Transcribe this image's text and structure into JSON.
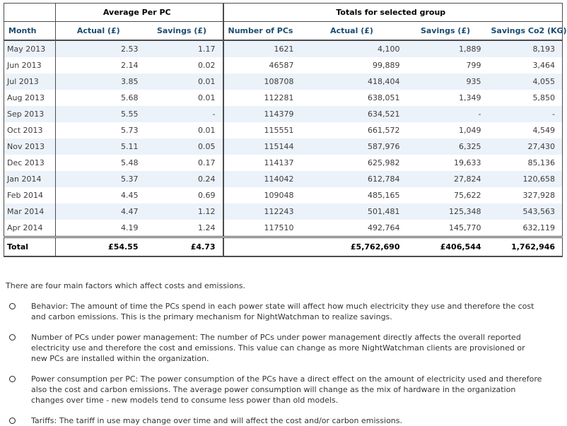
{
  "table": {
    "group_headers": {
      "average_per_pc": "Average Per PC",
      "totals": "Totals for selected group"
    },
    "columns": {
      "month": "Month",
      "avg_actual": "Actual (£)",
      "avg_savings": "Savings (£)",
      "num_pcs": "Number of PCs",
      "tot_actual": "Actual (£)",
      "tot_savings": "Savings (£)",
      "co2": "Savings Co2 (KG)"
    },
    "rows": [
      {
        "month": "May 2013",
        "avg_actual": "2.53",
        "avg_savings": "1.17",
        "num_pcs": "1621",
        "tot_actual": "4,100",
        "tot_savings": "1,889",
        "co2": "8,193"
      },
      {
        "month": "Jun 2013",
        "avg_actual": "2.14",
        "avg_savings": "0.02",
        "num_pcs": "46587",
        "tot_actual": "99,889",
        "tot_savings": "799",
        "co2": "3,464"
      },
      {
        "month": "Jul 2013",
        "avg_actual": "3.85",
        "avg_savings": "0.01",
        "num_pcs": "108708",
        "tot_actual": "418,404",
        "tot_savings": "935",
        "co2": "4,055"
      },
      {
        "month": "Aug 2013",
        "avg_actual": "5.68",
        "avg_savings": "0.01",
        "num_pcs": "112281",
        "tot_actual": "638,051",
        "tot_savings": "1,349",
        "co2": "5,850"
      },
      {
        "month": "Sep 2013",
        "avg_actual": "5.55",
        "avg_savings": "-",
        "num_pcs": "114379",
        "tot_actual": "634,521",
        "tot_savings": "-",
        "co2": "-"
      },
      {
        "month": "Oct 2013",
        "avg_actual": "5.73",
        "avg_savings": "0.01",
        "num_pcs": "115551",
        "tot_actual": "661,572",
        "tot_savings": "1,049",
        "co2": "4,549"
      },
      {
        "month": "Nov 2013",
        "avg_actual": "5.11",
        "avg_savings": "0.05",
        "num_pcs": "115144",
        "tot_actual": "587,976",
        "tot_savings": "6,325",
        "co2": "27,430"
      },
      {
        "month": "Dec 2013",
        "avg_actual": "5.48",
        "avg_savings": "0.17",
        "num_pcs": "114137",
        "tot_actual": "625,982",
        "tot_savings": "19,633",
        "co2": "85,136"
      },
      {
        "month": "Jan 2014",
        "avg_actual": "5.37",
        "avg_savings": "0.24",
        "num_pcs": "114042",
        "tot_actual": "612,784",
        "tot_savings": "27,824",
        "co2": "120,658"
      },
      {
        "month": "Feb 2014",
        "avg_actual": "4.45",
        "avg_savings": "0.69",
        "num_pcs": "109048",
        "tot_actual": "485,165",
        "tot_savings": "75,622",
        "co2": "327,928"
      },
      {
        "month": "Mar 2014",
        "avg_actual": "4.47",
        "avg_savings": "1.12",
        "num_pcs": "112243",
        "tot_actual": "501,481",
        "tot_savings": "125,348",
        "co2": "543,563"
      },
      {
        "month": "Apr 2014",
        "avg_actual": "4.19",
        "avg_savings": "1.24",
        "num_pcs": "117510",
        "tot_actual": "492,764",
        "tot_savings": "145,770",
        "co2": "632,119"
      }
    ],
    "total": {
      "label": "Total",
      "avg_actual": "£54.55",
      "avg_savings": "£4.73",
      "num_pcs": "",
      "tot_actual": "£5,762,690",
      "tot_savings": "£406,544",
      "co2": "1,762,946"
    }
  },
  "notes": {
    "intro": "There are four main factors which affect costs and emissions.",
    "bullets": [
      "Behavior: The amount of time the PCs spend in each power state will affect how much electricity they use and therefore the cost and carbon emissions. This is the primary mechanism for NightWatchman to realize savings.",
      "Number of PCs under power management: The number of PCs under power management directly affects the overall reported electricity use and therefore the cost and emissions. This value can change as more NightWatchman clients are provisioned or new PCs are installed within the organization.",
      "Power consumption per PC: The power consumption of the PCs have a direct effect on the amount of electricity used and therefore also the cost and carbon emissions. The average power consumption will change as the mix of hardware in the organization changes over time - new models tend to consume less power than old models.",
      "Tariffs: The tariff in use may change over time and will affect the cost and/or carbon emissions."
    ]
  },
  "colors": {
    "header_text": "#1b4c6e",
    "stripe": "#ecf2f9",
    "border": "#4c4c4c",
    "body_text": "#3c3c3c"
  }
}
